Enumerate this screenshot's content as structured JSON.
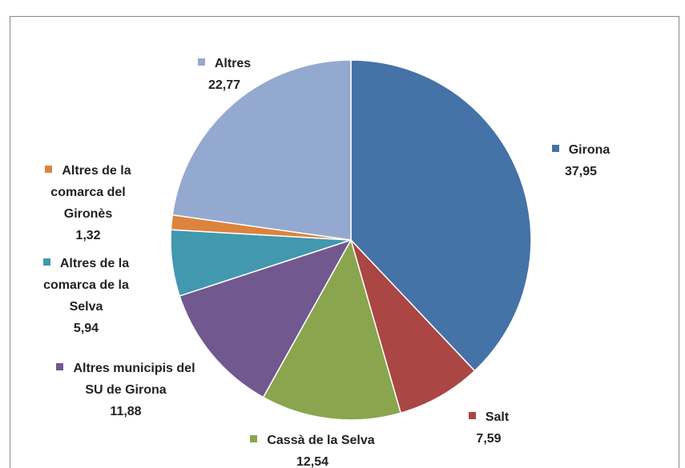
{
  "chart_data": {
    "type": "pie",
    "categories": [
      "Girona",
      "Salt",
      "Cassà de la Selva",
      "Altres municipis del SU de Girona",
      "Altres de la comarca de la Selva",
      "Altres de la comarca del Gironès",
      "Altres"
    ],
    "values": [
      37.95,
      7.59,
      12.54,
      11.88,
      5.94,
      1.32,
      22.77
    ],
    "value_labels": [
      "37,95",
      "7,59",
      "12,54",
      "11,88",
      "5,94",
      "1,32",
      "22,77"
    ],
    "colors": [
      "#4572a7",
      "#aa4643",
      "#89a54e",
      "#71588f",
      "#4198af",
      "#db843d",
      "#93a9cf"
    ],
    "legend": true
  }
}
